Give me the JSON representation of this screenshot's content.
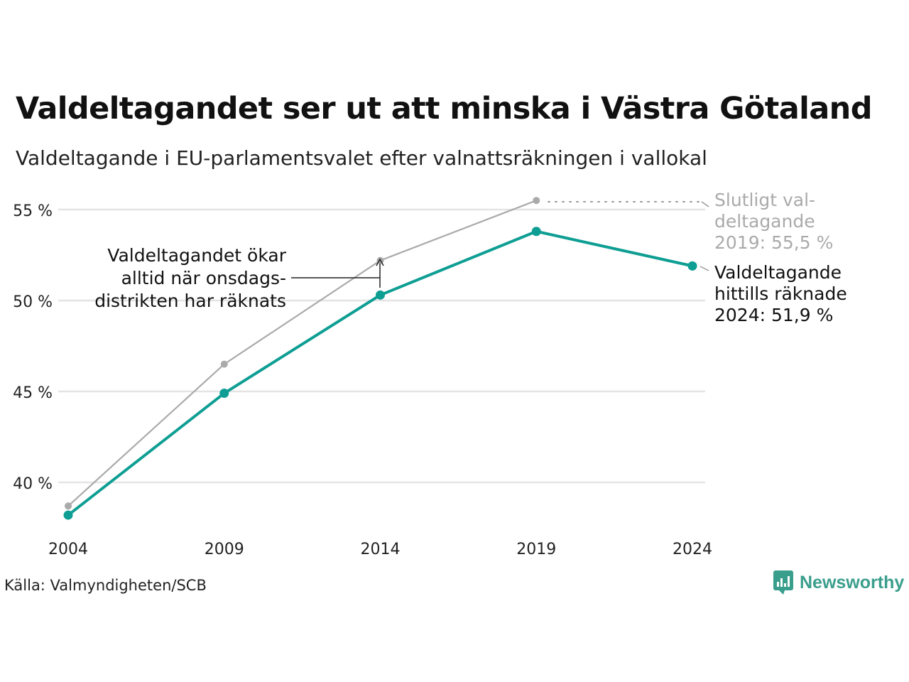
{
  "title": "Valdeltagandet ser ut att minska i Västra Götaland",
  "subtitle": "Valdeltagande i EU-parlamentsvalet efter valnattsräkningen i vallokal",
  "source": "Källa: Valmyndigheten/SCB",
  "brand": "Newsworthy",
  "colors": {
    "accent": "#0e9e93",
    "final": "#aaaaaa",
    "grid": "#e4e4e4",
    "text": "#222222",
    "muted": "#aaaaaa",
    "brand": "#3a9e8c"
  },
  "chart_data": {
    "type": "line",
    "x": [
      2004,
      2009,
      2014,
      2019,
      2024
    ],
    "ylim": [
      37,
      56
    ],
    "yticks": [
      40,
      45,
      50,
      55
    ],
    "ytick_labels": [
      "40 %",
      "45 %",
      "50 %",
      "55 %"
    ],
    "xtick_labels": [
      "2004",
      "2009",
      "2014",
      "2019",
      "2024"
    ],
    "grid": true,
    "series": [
      {
        "values": [
          38.7,
          46.5,
          52.2,
          55.5,
          null
        ],
        "color": "#aaaaaa"
      },
      {
        "values": [
          38.2,
          44.9,
          50.3,
          53.8,
          51.9
        ],
        "color": "#0e9e93"
      }
    ],
    "annotations": {
      "final": [
        "Slutligt val-",
        "deltagande",
        "2019: 55,5 %"
      ],
      "current": [
        "Valdeltagande",
        "hittills räknade",
        "2024: 51,9 %"
      ],
      "note": [
        "Valdeltagandet ökar",
        "alltid när onsdags-",
        "distrikten har räknats"
      ]
    }
  }
}
